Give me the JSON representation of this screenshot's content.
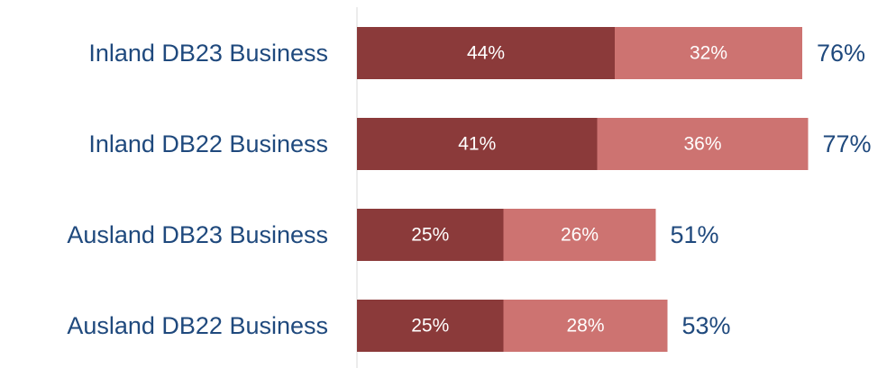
{
  "chart_data": {
    "type": "bar",
    "orientation": "horizontal",
    "stacked": true,
    "categories": [
      "Inland DB23 Business",
      "Inland DB22 Business",
      "Ausland DB23 Business",
      "Ausland DB22 Business"
    ],
    "series": [
      {
        "values": [
          44,
          41,
          25,
          25
        ],
        "color": "#8B3A3A",
        "value_labels": [
          "44%",
          "41%",
          "25%",
          "25%"
        ]
      },
      {
        "values": [
          32,
          36,
          26,
          28
        ],
        "color": "#CD7371",
        "value_labels": [
          "32%",
          "36%",
          "26%",
          "28%"
        ]
      }
    ],
    "totals": [
      76,
      77,
      51,
      53
    ],
    "total_labels": [
      "76%",
      "77%",
      "51%",
      "53%"
    ],
    "xlim": [
      0,
      100
    ],
    "grid": false,
    "legend": "none",
    "label_color": "#1F497D",
    "axis_color": "#D9D9D9"
  }
}
